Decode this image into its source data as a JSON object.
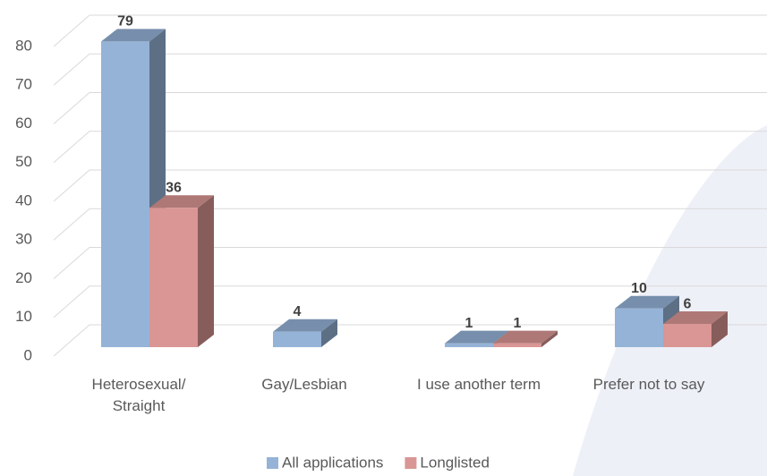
{
  "chart_data": {
    "type": "bar3d",
    "categories": [
      "Heterosexual/ Straight",
      "Gay/Lesbian",
      "I use another term",
      "Prefer not to say"
    ],
    "series": [
      {
        "name": "All applications",
        "color": "#95b3d7",
        "values": [
          79,
          4,
          1,
          10
        ]
      },
      {
        "name": "Longlisted",
        "color": "#d99694",
        "values": [
          36,
          null,
          1,
          6
        ]
      }
    ],
    "ylim": [
      0,
      80
    ],
    "yticks": [
      0,
      10,
      20,
      30,
      40,
      50,
      60,
      70,
      80
    ],
    "grid": true,
    "legend": "bottom"
  }
}
